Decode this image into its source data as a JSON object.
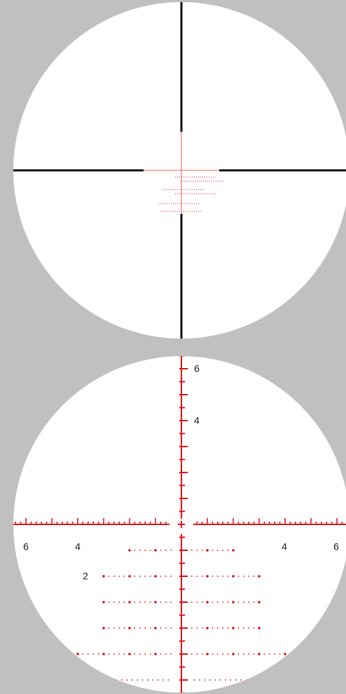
{
  "reticle_bottom": {
    "vertical_labels": [
      "6",
      "4"
    ],
    "left_labels": [
      "6",
      "4"
    ],
    "right_labels": [
      "4",
      "6"
    ],
    "holdover_label": "2"
  }
}
